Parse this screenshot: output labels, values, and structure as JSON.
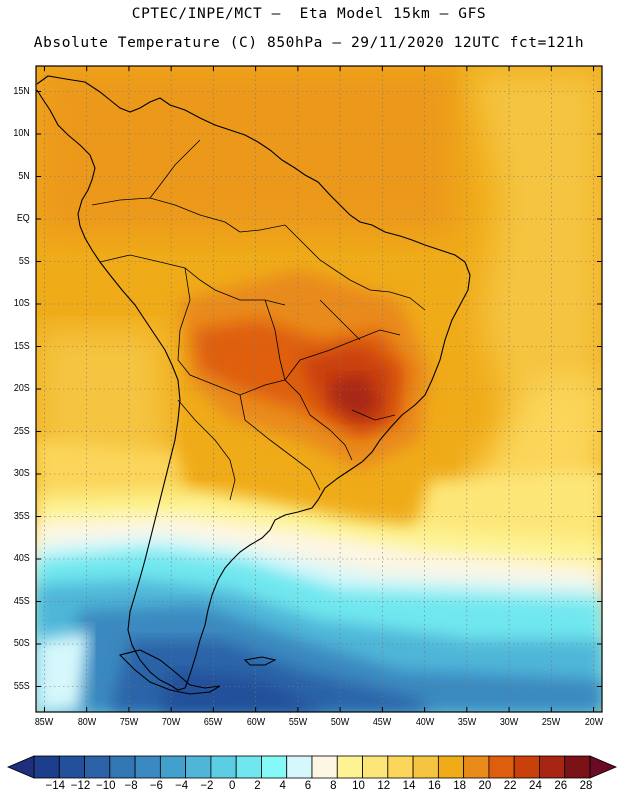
{
  "header": {
    "line1": "CPTEC/INPE/MCT –  Eta Model 15km – GFS",
    "line2": "Absolute Temperature (C) 850hPa – 29/11/2020 12UTC fct=121h"
  },
  "axes": {
    "lat_labels": [
      "15N",
      "10N",
      "5N",
      "EQ",
      "5S",
      "10S",
      "15S",
      "20S",
      "25S",
      "30S",
      "35S",
      "40S",
      "45S",
      "50S",
      "55S"
    ],
    "lat_values": [
      15,
      10,
      5,
      0,
      -5,
      -10,
      -15,
      -20,
      -25,
      -30,
      -35,
      -40,
      -45,
      -50,
      -55
    ],
    "lon_labels": [
      "85W",
      "80W",
      "75W",
      "70W",
      "65W",
      "60W",
      "55W",
      "50W",
      "45W",
      "40W",
      "35W",
      "30W",
      "25W",
      "20W"
    ],
    "lon_values": [
      -85,
      -80,
      -75,
      -70,
      -65,
      -60,
      -55,
      -50,
      -45,
      -40,
      -35,
      -30,
      -25,
      -20
    ],
    "lat_range": [
      -58,
      18
    ],
    "lon_range": [
      -86,
      -19
    ],
    "grid": "dotted"
  },
  "colorbar": {
    "labels": [
      "-14",
      "-12",
      "-10",
      "-8",
      "-6",
      "-4",
      "-2",
      "0",
      "2",
      "4",
      "6",
      "8",
      "10",
      "12",
      "14",
      "16",
      "18",
      "20",
      "22",
      "24",
      "26",
      "28"
    ],
    "under_color": "#1e2f7e",
    "over_color": "#6a0a24",
    "colors": [
      "#1d3e8c",
      "#23509a",
      "#2c63a8",
      "#3376b4",
      "#3a89c0",
      "#43a0cc",
      "#4fb6d8",
      "#5ccde3",
      "#70e7ee",
      "#85f8f8",
      "#d6f7fb",
      "#fdf6e3",
      "#fdf392",
      "#fde678",
      "#fbd65a",
      "#f5c441",
      "#f0ab19",
      "#e98a1a",
      "#df5e0e",
      "#c9400b",
      "#a72512",
      "#7a1218"
    ]
  }
}
